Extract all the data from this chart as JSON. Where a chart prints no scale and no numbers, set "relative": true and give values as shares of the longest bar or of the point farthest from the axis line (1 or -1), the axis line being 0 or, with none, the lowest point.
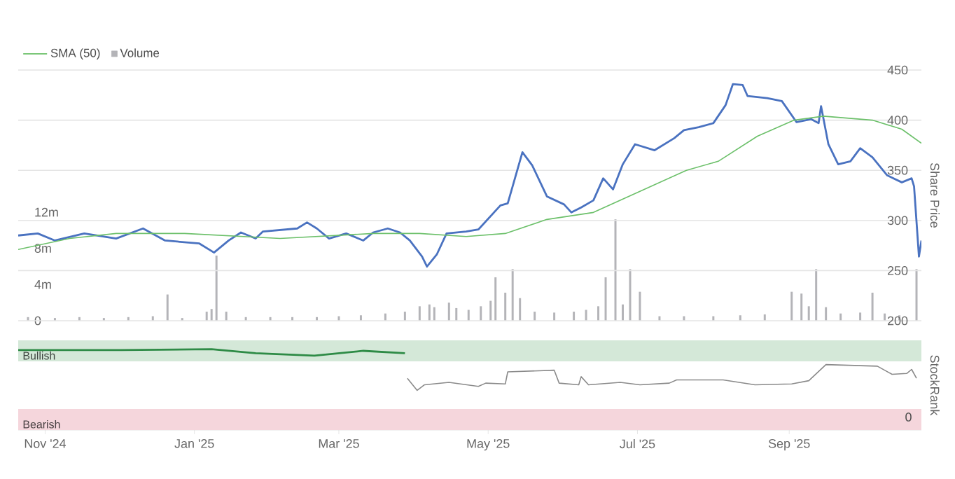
{
  "chart_data": [
    {
      "type": "line",
      "xlim": [
        "2024-10-21",
        "2025-10-25"
      ],
      "ylim": [
        0,
        27.7
      ],
      "yticks": [
        {
          "value": 0,
          "label": "0"
        },
        {
          "value": 4,
          "label": "4m"
        },
        {
          "value": 8,
          "label": "8m"
        },
        {
          "value": 12,
          "label": "12m"
        }
      ],
      "y2lim": [
        200,
        450
      ],
      "y2ticks": [
        200,
        250,
        300,
        350,
        400,
        450
      ],
      "y2label": "Share Price",
      "grid": "y2",
      "legend": "top left",
      "tick_labels": "y",
      "series": [
        {
          "type": "line",
          "axis": "y2",
          "color": "#4a72c0",
          "x": [
            "2024-10-21",
            "2024-10-29",
            "2024-11-05",
            "2024-11-17",
            "2024-11-30",
            "2024-12-11",
            "2024-12-20",
            "2025-01-03",
            "2025-01-09",
            "2025-01-15",
            "2025-01-20",
            "2025-01-26",
            "2025-01-29",
            "2025-02-12",
            "2025-02-16",
            "2025-02-20",
            "2025-02-25",
            "2025-03-04",
            "2025-03-11",
            "2025-03-15",
            "2025-03-21",
            "2025-03-26",
            "2025-03-30",
            "2025-04-04",
            "2025-04-06",
            "2025-04-10",
            "2025-04-14",
            "2025-04-22",
            "2025-04-27",
            "2025-05-06",
            "2025-05-09",
            "2025-05-15",
            "2025-05-19",
            "2025-05-25",
            "2025-06-01",
            "2025-06-04",
            "2025-06-08",
            "2025-06-13",
            "2025-06-17",
            "2025-06-21",
            "2025-06-25",
            "2025-06-30",
            "2025-07-08",
            "2025-07-16",
            "2025-07-20",
            "2025-07-26",
            "2025-08-01",
            "2025-08-06",
            "2025-08-09",
            "2025-08-13",
            "2025-08-15",
            "2025-08-23",
            "2025-08-29",
            "2025-09-04",
            "2025-09-10",
            "2025-09-13",
            "2025-09-14",
            "2025-09-17",
            "2025-09-21",
            "2025-09-26",
            "2025-09-30",
            "2025-10-05",
            "2025-10-11",
            "2025-10-17",
            "2025-10-21",
            "2025-10-22",
            "2025-10-24",
            "2025-10-25"
          ],
          "values": [
            285,
            287,
            280,
            287,
            282,
            292,
            280,
            277,
            268,
            280,
            288,
            282,
            289,
            292,
            298,
            292,
            282,
            287,
            280,
            288,
            292,
            288,
            280,
            264,
            254,
            266,
            287,
            289,
            291,
            315,
            317,
            368,
            355,
            324,
            316,
            308,
            313,
            320,
            342,
            331,
            356,
            376,
            370,
            382,
            390,
            393,
            397,
            415,
            436,
            435,
            424,
            422,
            419,
            398,
            401,
            397,
            414,
            376,
            356,
            359,
            372,
            363,
            345,
            338,
            342,
            334,
            264,
            280
          ]
        },
        {
          "type": "line",
          "axis": "y2",
          "name": "SMA (50)",
          "color": "#6cc06a",
          "x": [
            "2024-10-21",
            "2024-11-11",
            "2024-11-30",
            "2024-12-28",
            "2025-02-05",
            "2025-03-15",
            "2025-04-03",
            "2025-04-22",
            "2025-05-08",
            "2025-05-25",
            "2025-06-13",
            "2025-07-02",
            "2025-07-21",
            "2025-08-03",
            "2025-08-19",
            "2025-09-03",
            "2025-09-15",
            "2025-10-05",
            "2025-10-17",
            "2025-10-25"
          ],
          "values": [
            271,
            282,
            287,
            287,
            282,
            287,
            287,
            284,
            287,
            301,
            308,
            329,
            350,
            359,
            384,
            400,
            404,
            400,
            391,
            377
          ]
        },
        {
          "type": "bar",
          "name": "Volume",
          "color": "#b4b4b8",
          "x": [
            "2024-10-25",
            "2024-11-05",
            "2024-11-15",
            "2024-11-25",
            "2024-12-05",
            "2024-12-15",
            "2024-12-21",
            "2024-12-27",
            "2025-01-06",
            "2025-01-08",
            "2025-01-10",
            "2025-01-14",
            "2025-01-22",
            "2025-02-01",
            "2025-02-10",
            "2025-02-20",
            "2025-03-01",
            "2025-03-10",
            "2025-03-20",
            "2025-03-28",
            "2025-04-03",
            "2025-04-07",
            "2025-04-09",
            "2025-04-15",
            "2025-04-18",
            "2025-04-23",
            "2025-04-28",
            "2025-05-02",
            "2025-05-04",
            "2025-05-08",
            "2025-05-11",
            "2025-05-14",
            "2025-05-20",
            "2025-05-28",
            "2025-06-05",
            "2025-06-10",
            "2025-06-15",
            "2025-06-18",
            "2025-06-22",
            "2025-06-25",
            "2025-06-28",
            "2025-07-02",
            "2025-07-10",
            "2025-07-20",
            "2025-08-01",
            "2025-08-12",
            "2025-08-22",
            "2025-09-02",
            "2025-09-06",
            "2025-09-09",
            "2025-09-12",
            "2025-09-16",
            "2025-09-22",
            "2025-09-30",
            "2025-10-05",
            "2025-10-10",
            "2025-10-16",
            "2025-10-23"
          ],
          "values": [
            0.4,
            0.3,
            0.4,
            0.3,
            0.4,
            0.5,
            2.9,
            0.3,
            1.0,
            1.3,
            7.2,
            1.0,
            0.4,
            0.4,
            0.4,
            0.4,
            0.5,
            0.6,
            0.8,
            1.0,
            1.6,
            1.8,
            1.5,
            2.0,
            1.4,
            1.2,
            1.6,
            2.2,
            4.8,
            3.1,
            5.7,
            2.5,
            1.0,
            0.9,
            1.0,
            1.2,
            1.6,
            4.8,
            11.2,
            1.8,
            5.7,
            3.2,
            0.5,
            0.5,
            0.5,
            0.6,
            0.7,
            3.2,
            3.0,
            1.6,
            5.7,
            1.5,
            0.8,
            0.9,
            3.1,
            0.8,
            0.6,
            5.7
          ]
        }
      ]
    },
    {
      "type": "line",
      "relative": true,
      "xlim": [
        "2024-10-21",
        "2025-10-25"
      ],
      "xticks": [
        {
          "value": "2024-11-01",
          "label": "Nov '24"
        },
        {
          "value": "2025-01-01",
          "label": "Jan '25"
        },
        {
          "value": "2025-03-01",
          "label": "Mar '25"
        },
        {
          "value": "2025-05-01",
          "label": "May '25"
        },
        {
          "value": "2025-07-01",
          "label": "Jul '25"
        },
        {
          "value": "2025-09-01",
          "label": "Sep '25"
        }
      ],
      "ylabel": "StockRank",
      "annotations": [
        "0"
      ],
      "bands": [
        {
          "axis": "y",
          "from": 0.85,
          "to": 1.11,
          "label": "Bullish",
          "color": "#d4e8d8"
        },
        {
          "axis": "y",
          "from": 0,
          "to": 0.26,
          "label": "Bearish",
          "color": "#f5d6dc"
        }
      ],
      "series": [
        {
          "color": "#2e8b46",
          "x": [
            "2024-10-21",
            "2024-12-02",
            "2025-01-08",
            "2025-01-26",
            "2025-02-19",
            "2025-03-11",
            "2025-03-28"
          ],
          "values": [
            0.99,
            0.99,
            1.0,
            0.95,
            0.92,
            0.98,
            0.95
          ]
        },
        {
          "color": "#8a8a8a",
          "x": [
            "2025-03-29",
            "2025-04-02",
            "2025-04-05",
            "2025-04-15",
            "2025-04-27",
            "2025-04-30",
            "2025-05-08",
            "2025-05-09",
            "2025-05-28",
            "2025-05-30",
            "2025-06-07",
            "2025-06-08",
            "2025-06-11",
            "2025-06-24",
            "2025-07-02",
            "2025-07-14",
            "2025-07-17",
            "2025-08-05",
            "2025-08-18",
            "2025-09-02",
            "2025-09-09",
            "2025-09-16",
            "2025-10-07",
            "2025-10-13",
            "2025-10-19",
            "2025-10-21",
            "2025-10-23"
          ],
          "values": [
            0.64,
            0.49,
            0.56,
            0.59,
            0.54,
            0.58,
            0.57,
            0.72,
            0.74,
            0.58,
            0.56,
            0.66,
            0.56,
            0.59,
            0.56,
            0.58,
            0.62,
            0.62,
            0.56,
            0.57,
            0.61,
            0.81,
            0.79,
            0.69,
            0.7,
            0.75,
            0.64
          ]
        }
      ]
    }
  ]
}
